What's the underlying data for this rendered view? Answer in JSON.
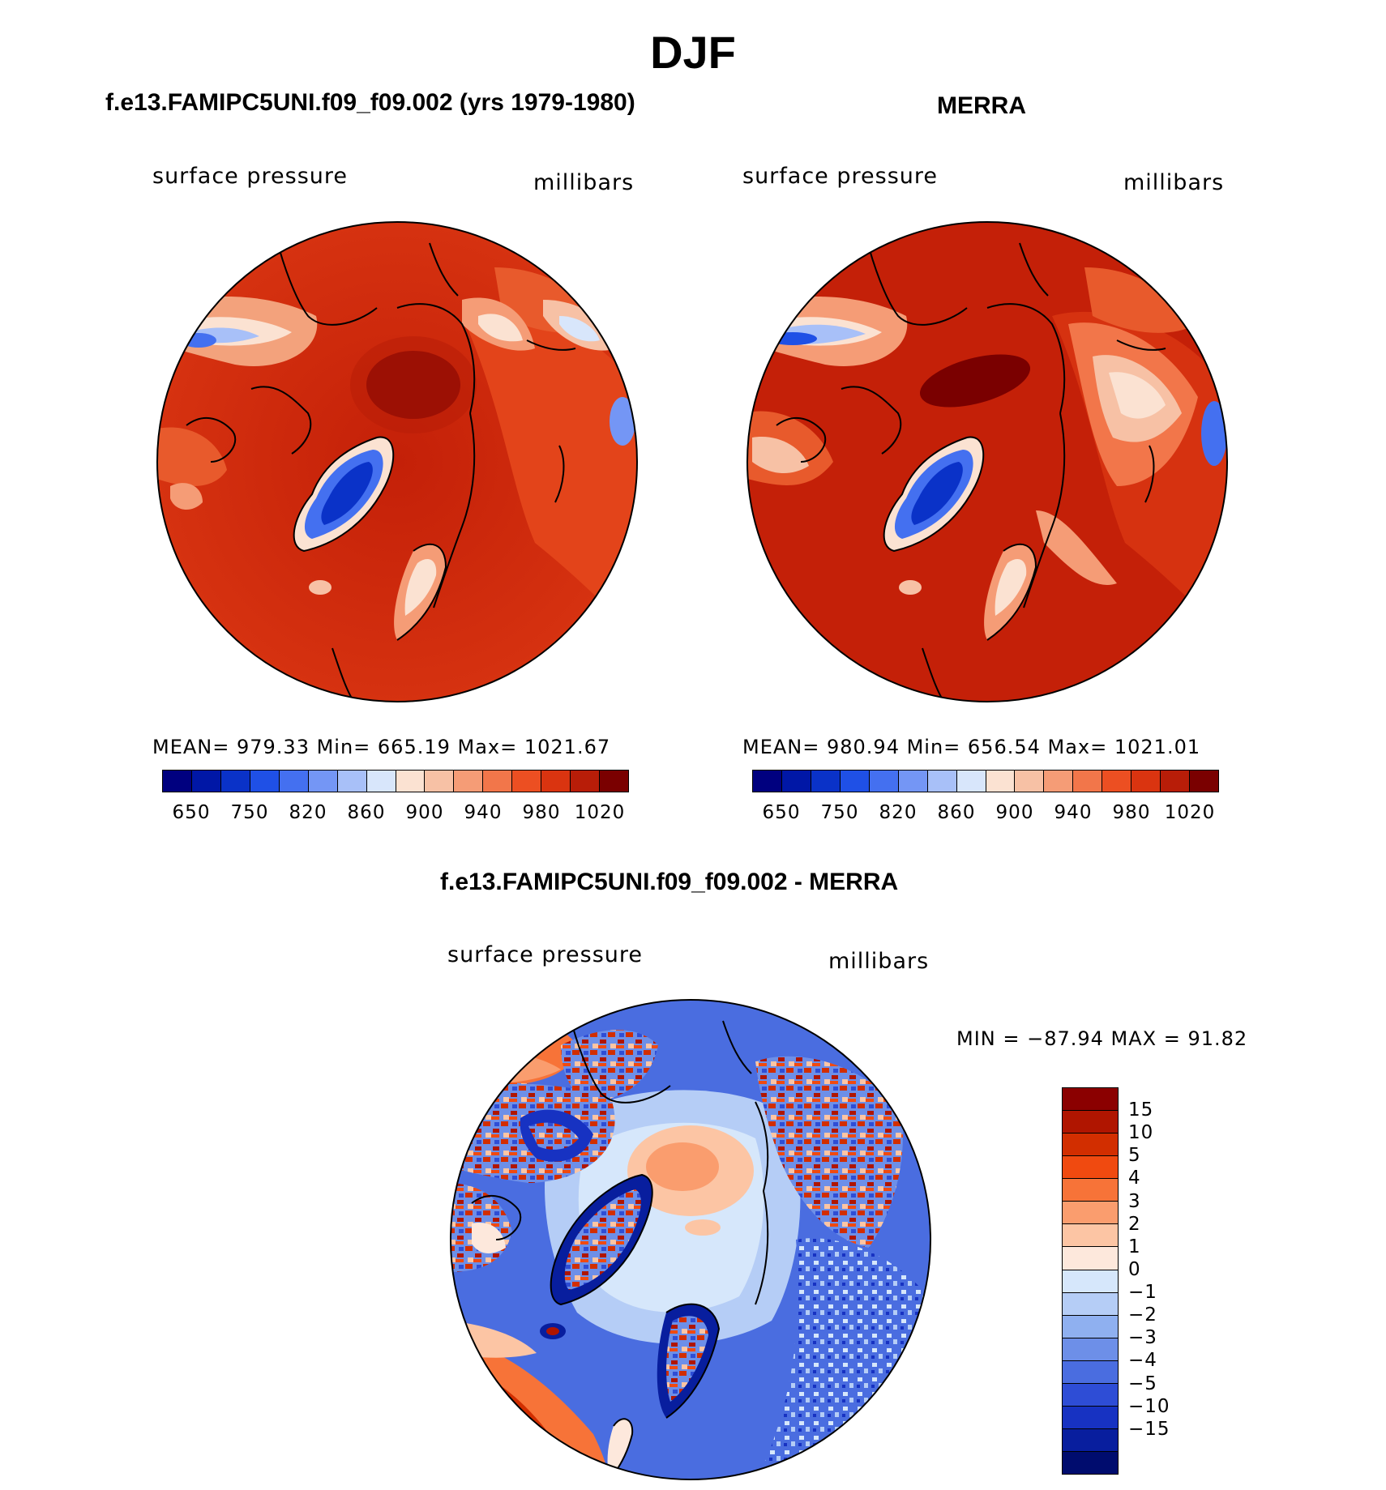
{
  "title": "DJF",
  "variable": "surface pressure",
  "units": "millibars",
  "panels": [
    {
      "title": "f.e13.FAMIPC5UNI.f09_f09.002 (yrs 1979-1980)",
      "stats": "MEAN= 979.33   Min= 665.19   Max= 1021.67"
    },
    {
      "title": "MERRA",
      "stats": "MEAN= 980.94   Min= 656.54   Max= 1021.01"
    },
    {
      "title": "f.e13.FAMIPC5UNI.f09_f09.002 - MERRA",
      "stats": "MIN = −87.94 MAX =   91.82"
    }
  ],
  "abs_colorbar": {
    "colors": [
      "#00007f",
      "#0017a6",
      "#0a32c8",
      "#1f50e6",
      "#4470f0",
      "#7496f5",
      "#a8c0f8",
      "#d8e6fb",
      "#fbe2d2",
      "#f7c1a5",
      "#f59c76",
      "#f2764a",
      "#ec4f22",
      "#da3410",
      "#b81d08",
      "#7a0000"
    ],
    "tick_labels": [
      "650",
      "750",
      "820",
      "860",
      "900",
      "940",
      "980",
      "1020"
    ]
  },
  "diff_colorbar": {
    "colors": [
      "#8b0000",
      "#b01500",
      "#d22e00",
      "#f04a10",
      "#f77338",
      "#fa9d6e",
      "#fcc5a4",
      "#fde8dc",
      "#d6e7fb",
      "#b5cdf6",
      "#8fb0f0",
      "#6d8fe8",
      "#4a6de0",
      "#2e4dd6",
      "#1732c2",
      "#081e9e",
      "#000c6e"
    ],
    "tick_labels": [
      "15",
      "10",
      "5",
      "4",
      "3",
      "2",
      "1",
      "0",
      "−1",
      "−2",
      "−3",
      "−4",
      "−5",
      "−10",
      "−15"
    ]
  },
  "chart_data": [
    {
      "type": "heatmap",
      "title": "f.e13.FAMIPC5UNI.f09_f09.002 (yrs 1979-1980)",
      "variable": "surface pressure",
      "units": "millibars",
      "mean": 979.33,
      "min": 665.19,
      "max": 1021.67,
      "levels": [
        650,
        750,
        820,
        860,
        900,
        940,
        980,
        1020
      ]
    },
    {
      "type": "heatmap",
      "title": "MERRA",
      "variable": "surface pressure",
      "units": "millibars",
      "mean": 980.94,
      "min": 656.54,
      "max": 1021.01,
      "levels": [
        650,
        750,
        820,
        860,
        900,
        940,
        980,
        1020
      ]
    },
    {
      "type": "heatmap",
      "title": "f.e13.FAMIPC5UNI.f09_f09.002 - MERRA",
      "variable": "surface pressure",
      "units": "millibars",
      "min": -87.94,
      "max": 91.82,
      "levels": [
        15,
        10,
        5,
        4,
        3,
        2,
        1,
        0,
        -1,
        -2,
        -3,
        -4,
        -5,
        -10,
        -15
      ]
    }
  ]
}
